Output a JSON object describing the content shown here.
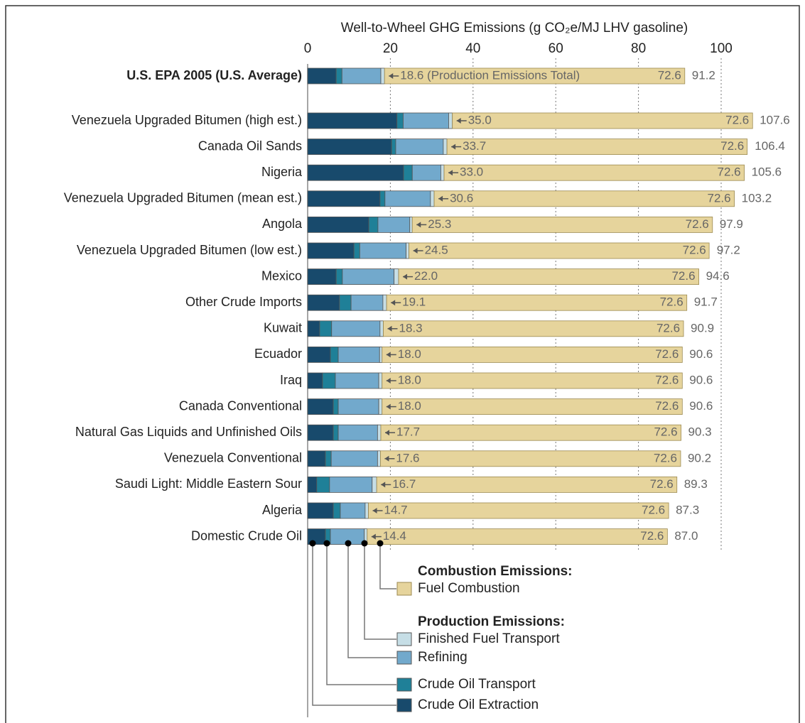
{
  "chart_data": {
    "type": "stacked-bar-horizontal",
    "title": "Well-to-Wheel GHG Emissions (g CO₂e/MJ LHV gasoline)",
    "categories": [
      "U.S. EPA 2005 (U.S. Average)",
      "Venezuela Upgraded Bitumen (high est.)",
      "Canada Oil Sands",
      "Nigeria",
      "Venezuela Upgraded Bitumen (mean est.)",
      "Angola",
      "Venezuela Upgraded Bitumen (low est.)",
      "Mexico",
      "Other Crude Imports",
      "Kuwait",
      "Ecuador",
      "Iraq",
      "Canada Conventional",
      "Natural Gas Liquids and Unfinished Oils",
      "Venezuela Conventional",
      "Saudi Light: Middle Eastern Sour",
      "Algeria",
      "Domestic Crude Oil"
    ],
    "series": [
      {
        "name": "Crude Oil Extraction",
        "color": "#184a6c",
        "values": [
          6.9,
          21.6,
          20.3,
          23.2,
          17.5,
          14.8,
          11.2,
          6.9,
          7.7,
          2.9,
          5.5,
          3.6,
          6.2,
          6.2,
          4.3,
          2.2,
          6.2,
          4.3
        ]
      },
      {
        "name": "Crude Oil Transport",
        "color": "#1f8098",
        "values": [
          1.4,
          1.5,
          1.0,
          2.1,
          1.2,
          2.2,
          1.4,
          1.5,
          2.8,
          2.9,
          1.9,
          3.1,
          1.2,
          1.2,
          1.4,
          3.1,
          1.7,
          1.2
        ]
      },
      {
        "name": "Refining",
        "color": "#72a9cc",
        "values": [
          9.4,
          11.0,
          11.5,
          6.9,
          11.0,
          7.7,
          11.2,
          12.5,
          7.7,
          11.7,
          10.0,
          10.5,
          9.8,
          9.5,
          11.2,
          10.3,
          6.0,
          8.2
        ]
      },
      {
        "name": "Finished Fuel Transport",
        "color": "#c6dee6",
        "values": [
          0.9,
          0.9,
          0.9,
          0.8,
          0.9,
          0.6,
          0.7,
          1.1,
          0.9,
          0.8,
          0.6,
          0.8,
          0.8,
          0.8,
          0.7,
          1.1,
          0.8,
          0.7
        ]
      },
      {
        "name": "Fuel Combustion",
        "color": "#e6d49c",
        "values": [
          72.6,
          72.6,
          72.6,
          72.6,
          72.6,
          72.6,
          72.6,
          72.6,
          72.6,
          72.6,
          72.6,
          72.6,
          72.6,
          72.6,
          72.6,
          72.6,
          72.6,
          72.6
        ]
      }
    ],
    "production_totals": [
      18.6,
      35.0,
      33.7,
      33.0,
      30.6,
      25.3,
      24.5,
      22.0,
      19.1,
      18.3,
      18.0,
      18.0,
      18.0,
      17.7,
      17.6,
      16.7,
      14.7,
      14.4
    ],
    "production_labels": [
      "18.6 (Production Emissions Total)",
      "35.0",
      "33.7",
      "33.0",
      "30.6",
      "25.3",
      "24.5",
      "22.0",
      "19.1",
      "18.3",
      "18.0",
      "18.0",
      "18.0",
      "17.7",
      "17.6",
      "16.7",
      "14.7",
      "14.4"
    ],
    "totals": [
      91.2,
      107.6,
      106.4,
      105.6,
      103.2,
      97.9,
      97.2,
      94.6,
      91.7,
      90.9,
      90.6,
      90.6,
      90.6,
      90.3,
      90.2,
      89.3,
      87.3,
      87.0
    ],
    "total_labels": [
      "91.2",
      "107.6",
      "106.4",
      "105.6",
      "103.2",
      "97.9",
      "97.2",
      "94.6",
      "91.7",
      "90.9",
      "90.6",
      "90.6",
      "90.6",
      "90.3",
      "90.2",
      "89.3",
      "87.3",
      "87.0"
    ],
    "legend_headings": [
      "Combustion Emissions:",
      "Production Emissions:"
    ],
    "xlim": [
      0,
      100
    ],
    "xticks": [
      0,
      20,
      40,
      60,
      80,
      100
    ],
    "grid": true
  }
}
